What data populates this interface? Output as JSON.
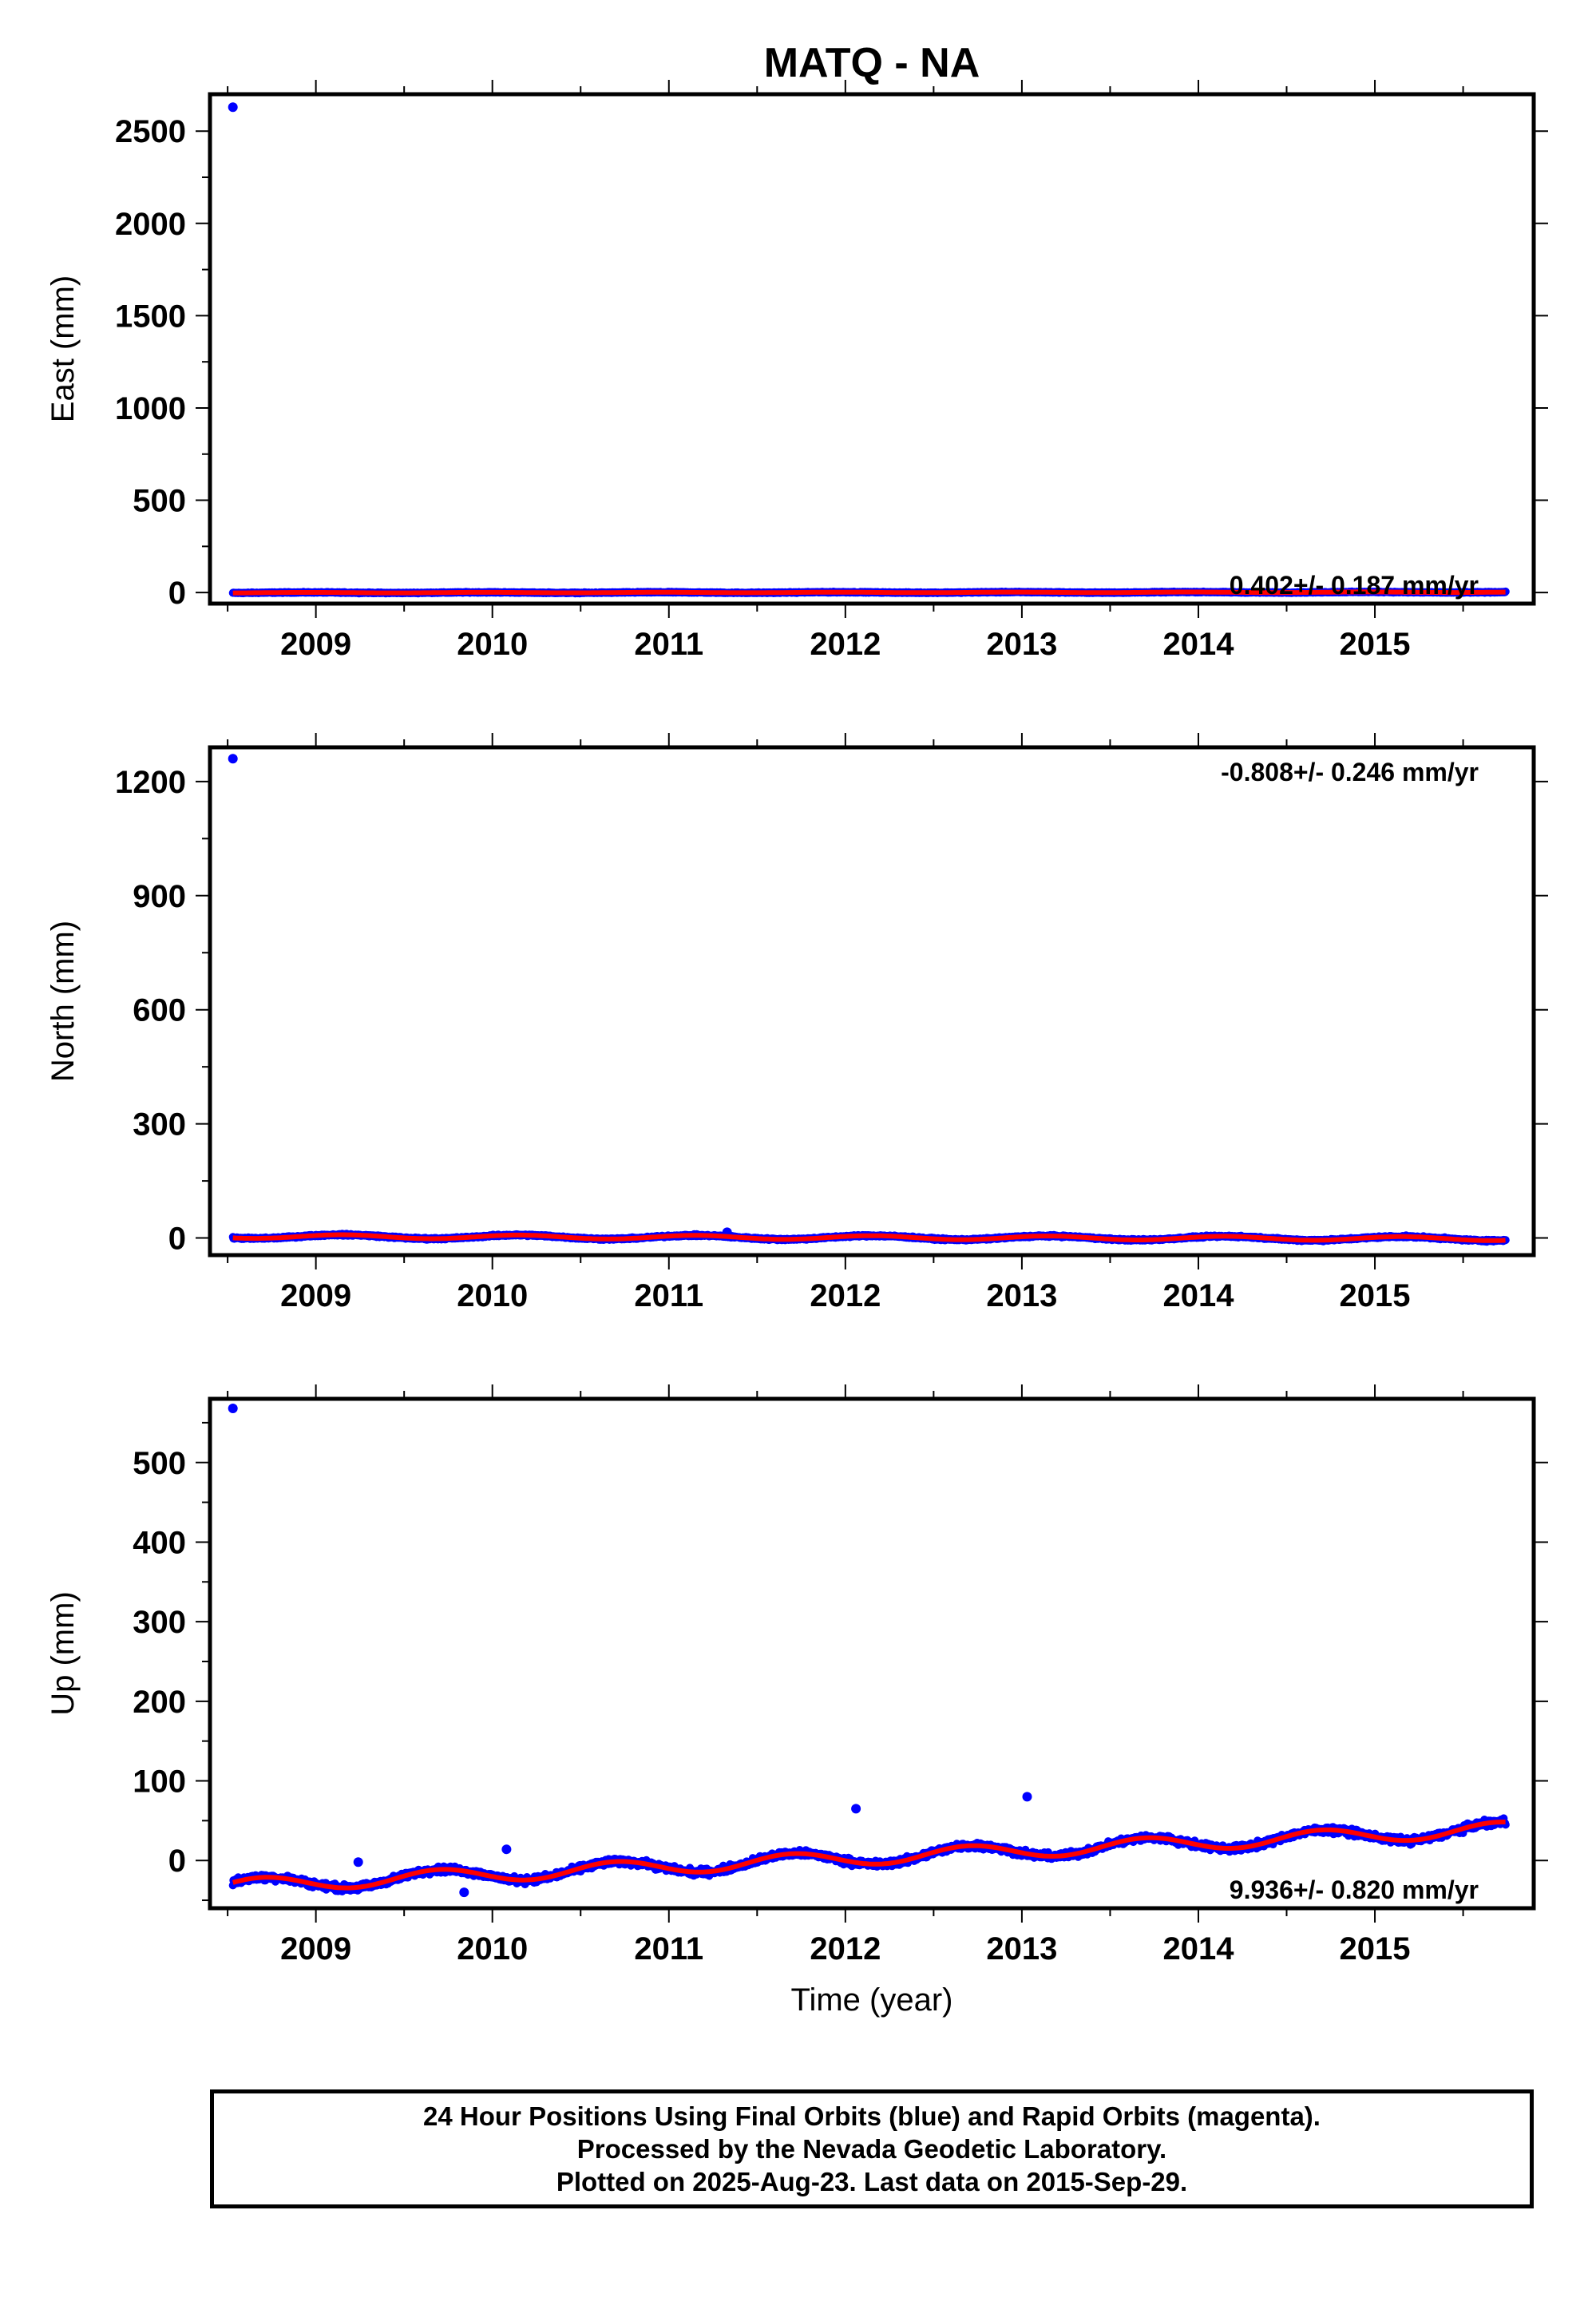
{
  "title": "MATQ - NA",
  "colors": {
    "final_orbits": "#0000ff",
    "fit_line": "#ff0000",
    "frame": "#000000"
  },
  "chart_data": [
    {
      "type": "scatter",
      "ylabel": "East (mm)",
      "xlabel": "",
      "xlim": [
        2008.4,
        2015.9
      ],
      "ylim": [
        -60,
        2700
      ],
      "yticks": [
        0,
        500,
        1000,
        1500,
        2000,
        2500
      ],
      "xticks": [
        2009,
        2010,
        2011,
        2012,
        2013,
        2014,
        2015
      ],
      "rate_label": "0.402+/- 0.187 mm/yr",
      "rate_position": "bottom-right",
      "outliers": [
        {
          "x": 2008.53,
          "y": 2630
        }
      ],
      "trend": {
        "start_year": 2008.53,
        "end_year": 2015.74,
        "start_value": -1,
        "rate_mm_per_yr": 0.402,
        "seasonal": [
          {
            "amp": 1.5,
            "period": 1.0,
            "phase": 0.3
          }
        ]
      },
      "scatter_noise_mm": 3.5,
      "series": [
        {
          "values": "daily positions",
          "color": "#0000ff"
        },
        {
          "values": "model fit",
          "color": "#ff0000"
        }
      ]
    },
    {
      "type": "scatter",
      "ylabel": "North (mm)",
      "xlabel": "",
      "xlim": [
        2008.4,
        2015.9
      ],
      "ylim": [
        -45,
        1290
      ],
      "yticks": [
        0,
        300,
        600,
        900,
        1200
      ],
      "xticks": [
        2009,
        2010,
        2011,
        2012,
        2013,
        2014,
        2015
      ],
      "rate_label": "-0.808+/- 0.246 mm/yr",
      "rate_position": "top-right",
      "outliers": [
        {
          "x": 2008.53,
          "y": 1260
        },
        {
          "x": 2011.33,
          "y": 15
        }
      ],
      "trend": {
        "start_year": 2008.53,
        "end_year": 2015.74,
        "start_value": 4,
        "rate_mm_per_yr": -0.808,
        "seasonal": [
          {
            "amp": 5.0,
            "period": 1.0,
            "phase": 0.1
          }
        ]
      },
      "scatter_noise_mm": 3.5,
      "series": [
        {
          "values": "daily positions",
          "color": "#0000ff"
        },
        {
          "values": "model fit",
          "color": "#ff0000"
        }
      ]
    },
    {
      "type": "scatter",
      "ylabel": "Up (mm)",
      "xlabel": "Time (year)",
      "xlim": [
        2008.4,
        2015.9
      ],
      "ylim": [
        -60,
        580
      ],
      "yticks": [
        0,
        100,
        200,
        300,
        400,
        500
      ],
      "xticks": [
        2009,
        2010,
        2011,
        2012,
        2013,
        2014,
        2015
      ],
      "rate_label": "9.936+/- 0.820 mm/yr",
      "rate_position": "bottom-right",
      "outliers": [
        {
          "x": 2008.53,
          "y": 568
        },
        {
          "x": 2012.06,
          "y": 65
        },
        {
          "x": 2013.03,
          "y": 80
        },
        {
          "x": 2010.08,
          "y": 14
        },
        {
          "x": 2009.24,
          "y": -2
        },
        {
          "x": 2009.84,
          "y": -40
        }
      ],
      "trend": {
        "start_year": 2008.53,
        "end_year": 2015.74,
        "start_value": -32,
        "rate_mm_per_yr": 9.936,
        "seasonal": [
          {
            "amp": 9.0,
            "period": 1.0,
            "phase": 0.55
          }
        ]
      },
      "scatter_noise_mm": 6.0,
      "series": [
        {
          "values": "daily positions",
          "color": "#0000ff"
        },
        {
          "values": "model fit",
          "color": "#ff0000"
        }
      ]
    }
  ],
  "footer": {
    "line1": "24 Hour Positions Using Final Orbits (blue) and Rapid Orbits (magenta).",
    "line2": "Processed by the Nevada Geodetic Laboratory.",
    "line3": "Plotted on 2025-Aug-23. Last data on 2015-Sep-29."
  }
}
